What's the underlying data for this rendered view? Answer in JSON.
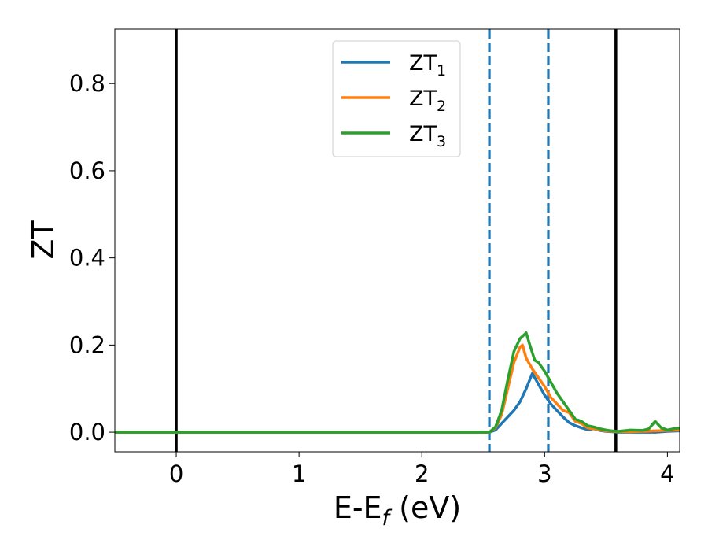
{
  "chart_data": {
    "type": "line",
    "xlabel": "E-E",
    "xlabel_sub": "f",
    "xlabel_unit": " (eV)",
    "ylabel": "ZT",
    "xlim": [
      -0.5,
      4.1
    ],
    "ylim": [
      -0.045,
      0.925
    ],
    "xticks": [
      0,
      1,
      2,
      3,
      4
    ],
    "xtick_labels": [
      "0",
      "1",
      "2",
      "3",
      "4"
    ],
    "yticks": [
      0.0,
      0.2,
      0.4,
      0.6,
      0.8
    ],
    "ytick_labels": [
      "0.0",
      "0.2",
      "0.4",
      "0.6",
      "0.8"
    ],
    "grid": false,
    "legend_position": "top-center",
    "vertical_lines": [
      {
        "x": 0.0,
        "style": "solid",
        "color": "#000000"
      },
      {
        "x": 3.58,
        "style": "solid",
        "color": "#000000"
      },
      {
        "x": 2.55,
        "style": "dashed",
        "color": "#1f77b4"
      },
      {
        "x": 3.03,
        "style": "dashed",
        "color": "#1f77b4"
      }
    ],
    "series": [
      {
        "name": "ZT",
        "name_sub": "1",
        "color": "#1f77b4",
        "x": [
          -0.5,
          2.5,
          2.55,
          2.6,
          2.65,
          2.7,
          2.75,
          2.8,
          2.85,
          2.9,
          2.95,
          3.0,
          3.05,
          3.1,
          3.15,
          3.2,
          3.25,
          3.3,
          3.35,
          3.4,
          3.45,
          3.5,
          3.55,
          3.6,
          3.7,
          3.8,
          3.9,
          4.0,
          4.1
        ],
        "y": [
          0.0,
          0.0,
          0.0,
          0.005,
          0.02,
          0.035,
          0.05,
          0.07,
          0.1,
          0.135,
          0.11,
          0.085,
          0.065,
          0.05,
          0.035,
          0.022,
          0.015,
          0.01,
          0.006,
          0.008,
          0.004,
          0.002,
          0.001,
          0.0,
          0.0,
          0.0,
          0.0,
          0.002,
          0.003
        ]
      },
      {
        "name": "ZT",
        "name_sub": "2",
        "color": "#ff7f0e",
        "x": [
          -0.5,
          2.5,
          2.55,
          2.6,
          2.65,
          2.7,
          2.75,
          2.8,
          2.82,
          2.85,
          2.9,
          2.95,
          3.0,
          3.05,
          3.1,
          3.15,
          3.2,
          3.25,
          3.3,
          3.35,
          3.4,
          3.45,
          3.5,
          3.55,
          3.6,
          3.7,
          3.8,
          3.9,
          4.0,
          4.1
        ],
        "y": [
          0.0,
          0.0,
          0.0,
          0.01,
          0.04,
          0.1,
          0.16,
          0.195,
          0.2,
          0.17,
          0.145,
          0.125,
          0.105,
          0.08,
          0.065,
          0.05,
          0.045,
          0.025,
          0.02,
          0.01,
          0.008,
          0.005,
          0.003,
          0.002,
          0.001,
          0.001,
          0.002,
          0.003,
          0.004,
          0.005
        ]
      },
      {
        "name": "ZT",
        "name_sub": "3",
        "color": "#2ca02c",
        "x": [
          -0.5,
          2.5,
          2.55,
          2.6,
          2.65,
          2.7,
          2.75,
          2.8,
          2.85,
          2.88,
          2.92,
          2.95,
          3.0,
          3.05,
          3.1,
          3.15,
          3.2,
          3.25,
          3.3,
          3.35,
          3.4,
          3.45,
          3.5,
          3.55,
          3.6,
          3.7,
          3.8,
          3.85,
          3.9,
          3.95,
          4.0,
          4.05,
          4.1
        ],
        "y": [
          0.0,
          0.0,
          0.0,
          0.012,
          0.05,
          0.12,
          0.185,
          0.215,
          0.228,
          0.2,
          0.165,
          0.16,
          0.14,
          0.115,
          0.09,
          0.07,
          0.05,
          0.03,
          0.025,
          0.015,
          0.012,
          0.008,
          0.005,
          0.003,
          0.002,
          0.005,
          0.004,
          0.008,
          0.025,
          0.01,
          0.005,
          0.008,
          0.01
        ]
      }
    ]
  }
}
